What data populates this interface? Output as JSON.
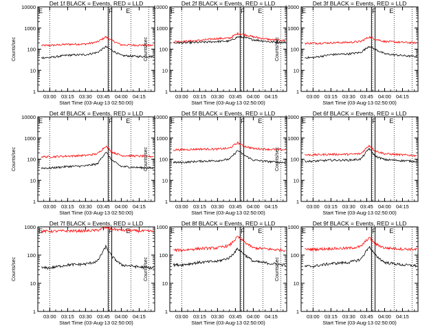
{
  "colors": {
    "events": "#000000",
    "lld": "#ff0000",
    "axes": "#000000",
    "background": "#ffffff"
  },
  "axis_common": {
    "ylabel": "Counts/sec",
    "xlabel": "Start Time (03-Aug-13 02:50:00)",
    "x_tick_labels": [
      "03:00",
      "03:15",
      "03:30",
      "03:45",
      "04:00",
      "04:15"
    ],
    "y_tick_labels": [
      "1",
      "10",
      "100",
      "1000",
      "10000"
    ],
    "x_scale": "time",
    "y_scale": "log"
  },
  "chart_data": [
    {
      "type": "line",
      "title": "Det 1f BLACK = Events, RED = LLD",
      "x": [
        "03:00",
        "03:15",
        "03:30",
        "03:40",
        "03:47",
        "03:52",
        "04:00",
        "04:15",
        "04:25"
      ],
      "series": [
        {
          "color": "red",
          "values": [
            150,
            170,
            175,
            220,
            380,
            260,
            160,
            155,
            150
          ]
        },
        {
          "color": "black",
          "values": [
            40,
            52,
            55,
            70,
            130,
            90,
            50,
            45,
            45
          ]
        }
      ],
      "ylim": [
        1,
        10000
      ],
      "markers": {
        "labels": [
          "E",
          "F",
          "E"
        ]
      }
    },
    {
      "type": "line",
      "title": "Det 2f BLACK = Events, RED = LLD",
      "x": [
        "03:00",
        "03:15",
        "03:30",
        "03:40",
        "03:47",
        "03:52",
        "04:00",
        "04:15",
        "04:25"
      ],
      "series": [
        {
          "color": "red",
          "values": [
            230,
            260,
            320,
            330,
            550,
            500,
            380,
            280,
            260
          ]
        },
        {
          "color": "black",
          "values": [
            200,
            210,
            230,
            240,
            380,
            360,
            280,
            220,
            210
          ]
        }
      ],
      "ylim": [
        1,
        10000
      ],
      "markers": {
        "labels": [
          "E",
          "F",
          "E"
        ]
      }
    },
    {
      "type": "line",
      "title": "Det 3f BLACK = Events, RED = LLD",
      "x": [
        "03:00",
        "03:15",
        "03:30",
        "03:40",
        "03:47",
        "03:52",
        "04:00",
        "04:15",
        "04:25"
      ],
      "series": [
        {
          "color": "red",
          "values": [
            190,
            200,
            210,
            230,
            380,
            300,
            230,
            210,
            200
          ]
        },
        {
          "color": "black",
          "values": [
            40,
            55,
            60,
            70,
            140,
            100,
            60,
            50,
            45
          ]
        }
      ],
      "ylim": [
        1,
        10000
      ],
      "markers": {
        "labels": [
          "E",
          "F",
          "E"
        ]
      }
    },
    {
      "type": "line",
      "title": "Det 4f BLACK = Events, RED = LLD",
      "x": [
        "03:00",
        "03:15",
        "03:30",
        "03:40",
        "03:47",
        "03:52",
        "04:00",
        "04:15",
        "04:25"
      ],
      "series": [
        {
          "color": "red",
          "values": [
            130,
            140,
            150,
            180,
            420,
            220,
            150,
            140,
            135
          ]
        },
        {
          "color": "black",
          "values": [
            38,
            45,
            48,
            60,
            220,
            90,
            45,
            40,
            38
          ]
        }
      ],
      "ylim": [
        1,
        10000
      ],
      "markers": {
        "labels": [
          "E",
          "F",
          "E"
        ]
      }
    },
    {
      "type": "line",
      "title": "Det 5f BLACK = Events, RED = LLD",
      "x": [
        "03:00",
        "03:15",
        "03:30",
        "03:40",
        "03:47",
        "03:52",
        "04:00",
        "04:15",
        "04:25"
      ],
      "series": [
        {
          "color": "red",
          "values": [
            280,
            300,
            300,
            330,
            600,
            420,
            320,
            290,
            280
          ]
        },
        {
          "color": "black",
          "values": [
            70,
            80,
            85,
            100,
            260,
            160,
            90,
            75,
            70
          ]
        }
      ],
      "ylim": [
        1,
        10000
      ],
      "markers": {
        "labels": [
          "E",
          "F",
          "E"
        ]
      }
    },
    {
      "type": "line",
      "title": "Det 6f BLACK = Events, RED = LLD",
      "x": [
        "03:00",
        "03:15",
        "03:30",
        "03:40",
        "03:47",
        "03:52",
        "04:00",
        "04:15",
        "04:25"
      ],
      "series": [
        {
          "color": "red",
          "values": [
            160,
            170,
            170,
            180,
            450,
            250,
            180,
            160,
            150
          ]
        },
        {
          "color": "black",
          "values": [
            80,
            90,
            90,
            100,
            320,
            140,
            95,
            85,
            80
          ]
        }
      ],
      "ylim": [
        1,
        10000
      ],
      "markers": {
        "labels": [
          "E",
          "F",
          "E"
        ]
      }
    },
    {
      "type": "line",
      "title": "Det 7f BLACK = Events, RED = LLD",
      "x": [
        "03:00",
        "03:15",
        "03:30",
        "03:40",
        "03:47",
        "03:52",
        "04:00",
        "04:15",
        "04:25"
      ],
      "series": [
        {
          "color": "red",
          "values": [
            700,
            720,
            720,
            760,
            950,
            850,
            760,
            720,
            700
          ]
        },
        {
          "color": "black",
          "values": [
            35,
            45,
            48,
            60,
            200,
            90,
            45,
            38,
            35
          ]
        }
      ],
      "ylim": [
        1,
        1000
      ],
      "markers": {
        "labels": [
          "E",
          "F",
          "E"
        ]
      }
    },
    {
      "type": "line",
      "title": "Det 8f BLACK = Events, RED = LLD",
      "x": [
        "03:00",
        "03:15",
        "03:30",
        "03:40",
        "03:47",
        "03:52",
        "04:00",
        "04:15",
        "04:25"
      ],
      "series": [
        {
          "color": "red",
          "values": [
            150,
            170,
            180,
            220,
            450,
            300,
            180,
            160,
            150
          ]
        },
        {
          "color": "black",
          "values": [
            45,
            55,
            60,
            80,
            170,
            110,
            60,
            50,
            45
          ]
        }
      ],
      "ylim": [
        1,
        1000
      ],
      "markers": {
        "labels": [
          "E",
          "F",
          "E"
        ]
      }
    },
    {
      "type": "line",
      "title": "Det 9f BLACK = Events, RED = LLD",
      "x": [
        "03:00",
        "03:15",
        "03:30",
        "03:40",
        "03:47",
        "03:52",
        "04:00",
        "04:15",
        "04:25"
      ],
      "series": [
        {
          "color": "red",
          "values": [
            160,
            170,
            175,
            200,
            420,
            250,
            180,
            165,
            160
          ]
        },
        {
          "color": "black",
          "values": [
            40,
            50,
            55,
            70,
            200,
            100,
            55,
            45,
            42
          ]
        }
      ],
      "ylim": [
        1,
        1000
      ],
      "markers": {
        "labels": [
          "E",
          "F",
          "E"
        ]
      }
    }
  ]
}
